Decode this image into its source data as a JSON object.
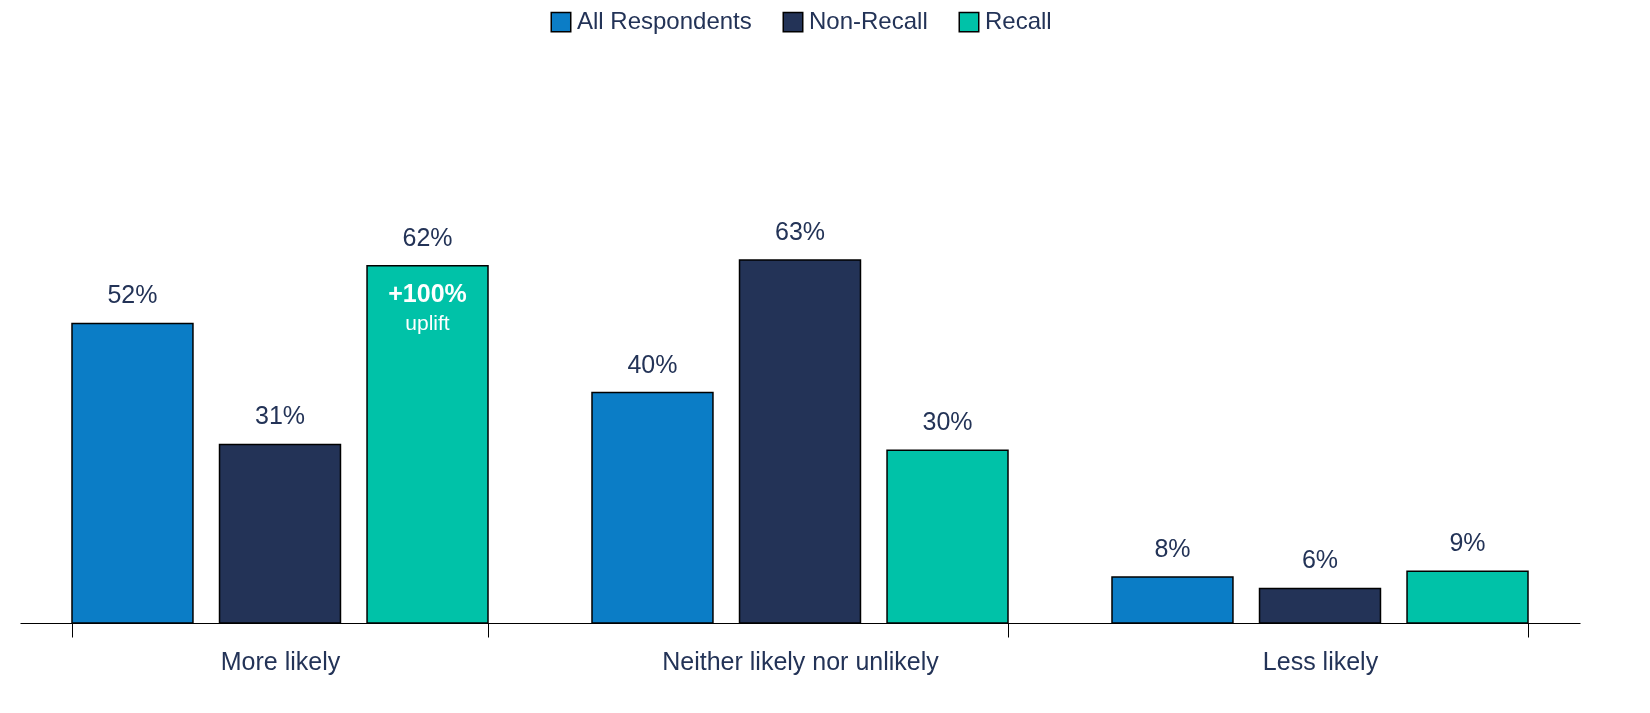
{
  "chart_data": {
    "type": "bar",
    "categories": [
      "More likely",
      "Neither likely nor unlikely",
      "Less likely"
    ],
    "series": [
      {
        "name": "All Respondents",
        "color": "#0b7dc6",
        "values": [
          52,
          40,
          8
        ],
        "value_labels": [
          "52%",
          "40%",
          "8%"
        ]
      },
      {
        "name": "Non-Recall",
        "color": "#233357",
        "values": [
          31,
          63,
          6
        ],
        "value_labels": [
          "31%",
          "63%",
          "6%"
        ]
      },
      {
        "name": "Recall",
        "color": "#00c2a8",
        "values": [
          62,
          30,
          9
        ],
        "value_labels": [
          "62%",
          "30%",
          "9%"
        ]
      }
    ],
    "legend": "top",
    "grid": false,
    "annotations": [
      "+100%\nuplift"
    ]
  }
}
